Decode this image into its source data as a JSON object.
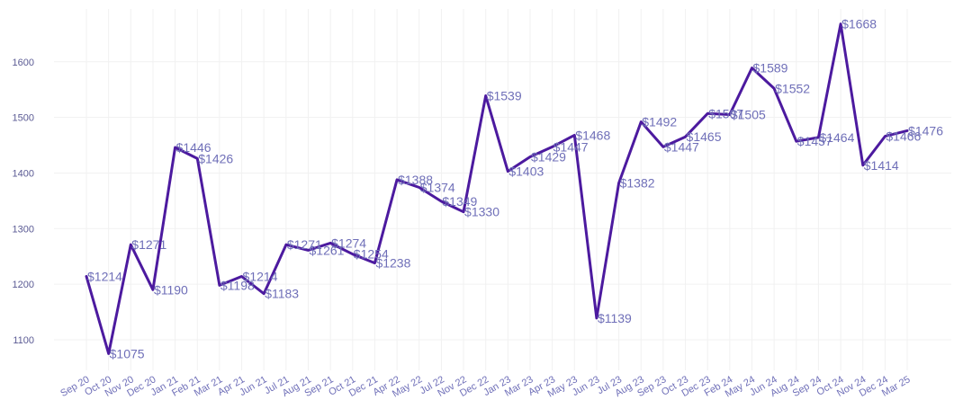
{
  "chart_data": {
    "type": "line",
    "title": "",
    "xlabel": "",
    "ylabel": "",
    "ylim": [
      1045,
      1695
    ],
    "yticks": [
      1100,
      1200,
      1300,
      1400,
      1500,
      1600
    ],
    "categories": [
      "Sep 20",
      "Oct 20",
      "Nov 20",
      "Dec 20",
      "Jan 21",
      "Feb 21",
      "Mar 21",
      "Apr 21",
      "Jun 21",
      "Jul 21",
      "Aug 21",
      "Sep 21",
      "Oct 21",
      "Dec 21",
      "Apr 22",
      "May 22",
      "Jul 22",
      "Nov 22",
      "Dec 22",
      "Jan 23",
      "Mar 23",
      "Apr 23",
      "May 23",
      "Jun 23",
      "Jul 23",
      "Aug 23",
      "Sep 23",
      "Oct 23",
      "Dec 23",
      "Feb 24",
      "May 24",
      "Jun 24",
      "Aug 24",
      "Sep 24",
      "Oct 24",
      "Nov 24",
      "Dec 24",
      "Mar 25"
    ],
    "values": [
      1214,
      1075,
      1271,
      1190,
      1446,
      1426,
      1198,
      1214,
      1183,
      1271,
      1261,
      1274,
      1254,
      1238,
      1388,
      1374,
      1349,
      1330,
      1539,
      1403,
      1429,
      1447,
      1468,
      1139,
      1382,
      1492,
      1447,
      1465,
      1507,
      1505,
      1589,
      1552,
      1457,
      1464,
      1668,
      1414,
      1466,
      1476
    ],
    "data_labels": [
      "$1214",
      "$1075",
      "$1271",
      "$1190",
      "$1446",
      "$1426",
      "$1198",
      "$1214",
      "$1183",
      "$1271",
      "$1261",
      "$1274",
      "$1254",
      "$1238",
      "$1388",
      "$1374",
      "$1349",
      "$1330",
      "$1539",
      "$1403",
      "$1429",
      "$1447",
      "$1468",
      "$1139",
      "$1382",
      "$1492",
      "$1447",
      "$1465",
      "$1507",
      "$1505",
      "$1589",
      "$1552",
      "$1457",
      "$1464",
      "$1668",
      "$1414",
      "$1466",
      "$1476"
    ],
    "line_color": "#4c1a9f",
    "grid": true
  }
}
